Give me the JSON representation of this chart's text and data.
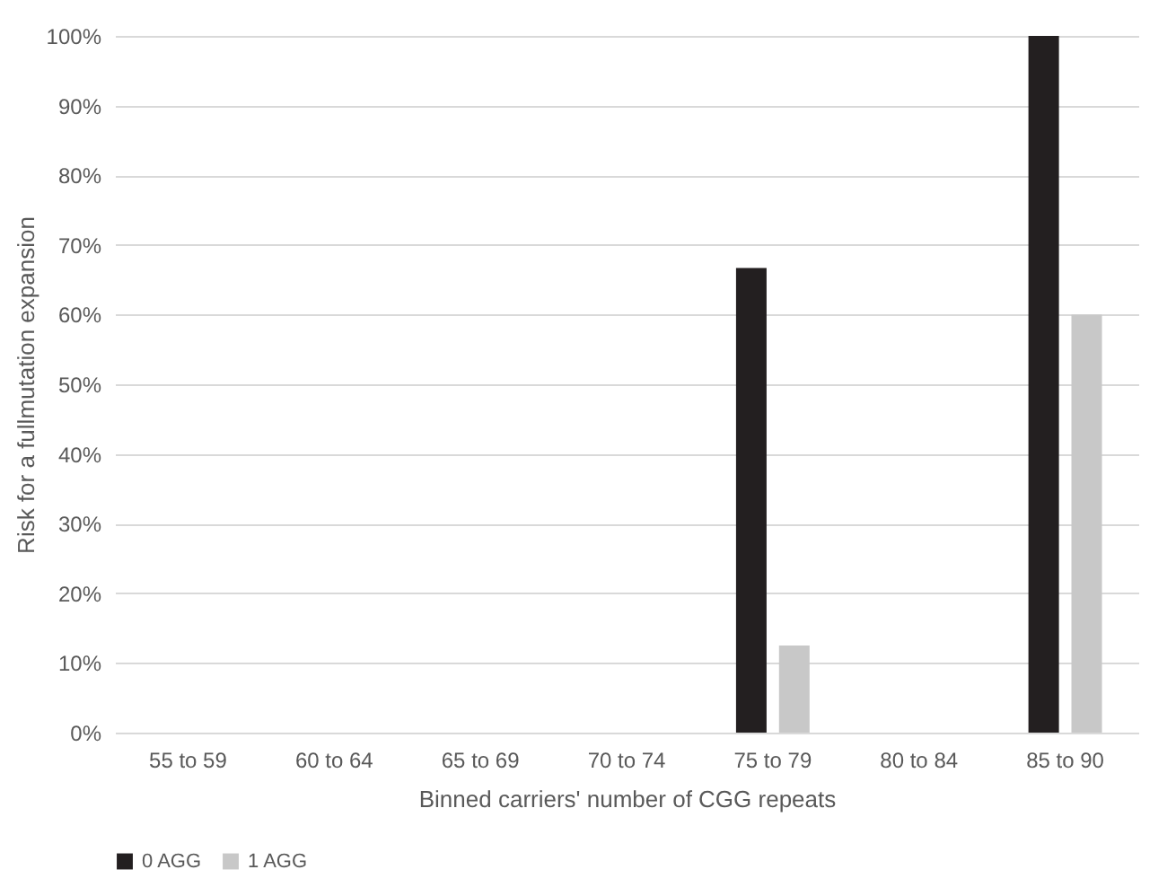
{
  "chart_data": {
    "type": "bar",
    "xlabel": "Binned carriers' number of CGG repeats",
    "ylabel": "Risk for a fullmutation expansion",
    "categories": [
      "55 to 59",
      "60 to 64",
      "65 to 69",
      "70 to 74",
      "75 to 79",
      "80 to 84",
      "85 to 90"
    ],
    "series": [
      {
        "name": "0 AGG",
        "color": "#231f20",
        "values": [
          0,
          0,
          0,
          0,
          66.7,
          0,
          100
        ]
      },
      {
        "name": "1 AGG",
        "color": "#c8c8c8",
        "values": [
          0,
          0,
          0,
          0,
          12.5,
          0,
          60
        ]
      }
    ],
    "ylim": [
      0,
      100
    ],
    "yticks": [
      {
        "value": 0,
        "label": "0%"
      },
      {
        "value": 10,
        "label": "10%"
      },
      {
        "value": 20,
        "label": "20%"
      },
      {
        "value": 30,
        "label": "30%"
      },
      {
        "value": 40,
        "label": "40%"
      },
      {
        "value": 50,
        "label": "50%"
      },
      {
        "value": 60,
        "label": "60%"
      },
      {
        "value": 70,
        "label": "70%"
      },
      {
        "value": 80,
        "label": "80%"
      },
      {
        "value": 90,
        "label": "90%"
      },
      {
        "value": 100,
        "label": "100%"
      }
    ],
    "grid": "y",
    "legend": "bottom"
  }
}
